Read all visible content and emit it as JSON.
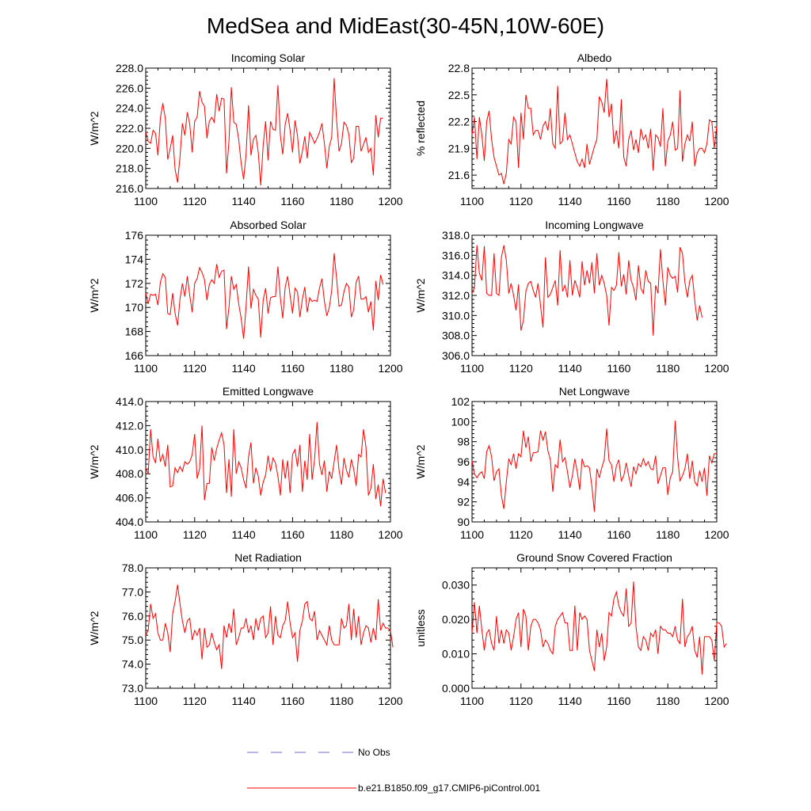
{
  "page_title": "MedSea and MidEast(30-45N,10W-60E)",
  "series_color": "#ff0000",
  "obs_color": "#6f6fc8",
  "legend": {
    "obs_label": "No Obs",
    "model_label": "b.e21.B1850.f09_g17.CMIP6-piControl.001"
  },
  "chart_data": [
    {
      "type": "line",
      "title": "Incoming Solar",
      "ylabel": "W/m^2",
      "xlim": [
        1100,
        1200
      ],
      "ylim": [
        216,
        228
      ],
      "xticks": [
        "1100",
        "1120",
        "1140",
        "1160",
        "1180",
        "1200"
      ],
      "yticks": [
        "216.0",
        "218.0",
        "220.0",
        "222.0",
        "224.0",
        "226.0",
        "228.0"
      ],
      "x_start": 1100,
      "values": [
        221.6,
        220.7,
        220.5,
        221.8,
        221.5,
        219.3,
        223.0,
        224.5,
        223.0,
        218.9,
        220.0,
        221.3,
        217.9,
        216.6,
        219.2,
        222.5,
        221.3,
        223.6,
        222.4,
        219.6,
        222.7,
        223.1,
        225.7,
        224.6,
        224.2,
        221.0,
        222.7,
        223.1,
        222.6,
        225.4,
        223.7,
        225.0,
        224.9,
        217.5,
        220.7,
        226.1,
        222.6,
        222.4,
        220.9,
        218.5,
        216.9,
        219.4,
        224.3,
        219.3,
        220.9,
        221.3,
        219.6,
        216.3,
        220.3,
        222.7,
        218.8,
        222.7,
        221.9,
        221.8,
        226.3,
        221.3,
        219.4,
        222.4,
        223.5,
        221.8,
        219.6,
        222.8,
        221.3,
        218.5,
        219.7,
        221.2,
        219.0,
        221.6,
        221.1,
        220.5,
        221.0,
        221.6,
        222.5,
        220.5,
        218.0,
        220.2,
        221.1,
        227.0,
        222.8,
        219.7,
        220.5,
        222.6,
        222.3,
        221.4,
        218.6,
        219.0,
        222.2,
        222.2,
        219.7,
        220.4,
        221.1,
        219.6,
        220.0,
        217.3,
        223.3,
        221.1,
        223.0,
        223.0
      ]
    },
    {
      "type": "line",
      "title": "Albedo",
      "ylabel": "% reflected",
      "xlim": [
        1100,
        1200
      ],
      "ylim": [
        21.45,
        22.8
      ],
      "xticks": [
        "1100",
        "1120",
        "1140",
        "1160",
        "1180",
        "1200"
      ],
      "yticks": [
        "21.6",
        "21.9",
        "22.2",
        "22.5",
        "22.8"
      ],
      "ytick_values": [
        21.6,
        21.9,
        22.2,
        22.5,
        22.8
      ],
      "x_start": 1100,
      "values": [
        22.05,
        22.25,
        21.78,
        22.25,
        22.05,
        21.76,
        22.2,
        22.32,
        22.0,
        21.8,
        21.7,
        21.6,
        21.62,
        21.5,
        21.62,
        22.0,
        21.95,
        22.25,
        22.2,
        21.68,
        22.3,
        22.0,
        22.5,
        22.35,
        22.35,
        22.05,
        22.1,
        22.1,
        22.0,
        22.15,
        22.2,
        22.1,
        22.35,
        21.95,
        21.9,
        22.6,
        21.95,
        21.98,
        22.3,
        22.0,
        22.05,
        21.95,
        21.85,
        21.75,
        21.7,
        21.78,
        21.68,
        21.95,
        21.72,
        21.82,
        21.92,
        22.0,
        22.48,
        22.42,
        22.3,
        22.68,
        22.25,
        22.4,
        21.95,
        22.1,
        21.9,
        22.45,
        21.8,
        21.7,
        22.0,
        22.1,
        21.88,
        22.0,
        21.85,
        22.12,
        22.0,
        22.05,
        21.9,
        22.12,
        21.65,
        22.05,
        22.02,
        21.92,
        22.35,
        21.7,
        21.98,
        22.05,
        22.2,
        21.88,
        21.9,
        22.55,
        21.75,
        21.95,
        22.05,
        21.98,
        22.2,
        21.7,
        21.85,
        21.9,
        21.9,
        21.85,
        21.95,
        22.22,
        22.2,
        21.9,
        22.15
      ]
    },
    {
      "type": "line",
      "title": "Absorbed Solar",
      "ylabel": "W/m^2",
      "xlim": [
        1100,
        1200
      ],
      "ylim": [
        166,
        176
      ],
      "xticks": [
        "1100",
        "1120",
        "1140",
        "1160",
        "1180",
        "1200"
      ],
      "yticks": [
        "166",
        "168",
        "170",
        "172",
        "174",
        "176"
      ],
      "x_start": 1100,
      "values": [
        171.2,
        170.3,
        171.1,
        171.0,
        171.1,
        170.2,
        172.1,
        172.8,
        172.5,
        169.5,
        169.4,
        171.2,
        169.5,
        168.5,
        170.7,
        172.0,
        170.9,
        172.6,
        171.0,
        169.6,
        172.0,
        172.4,
        173.3,
        172.9,
        172.3,
        170.6,
        171.9,
        172.3,
        172.0,
        173.6,
        172.5,
        173.0,
        173.1,
        168.2,
        170.0,
        172.6,
        171.5,
        171.9,
        170.3,
        169.1,
        167.4,
        170.1,
        173.4,
        169.9,
        171.5,
        171.0,
        170.7,
        167.5,
        170.6,
        171.6,
        169.5,
        170.8,
        170.9,
        170.9,
        173.4,
        170.8,
        169.1,
        171.7,
        172.6,
        171.0,
        169.5,
        171.6,
        171.3,
        169.2,
        170.7,
        171.7,
        169.6,
        170.8,
        170.5,
        170.6,
        170.5,
        171.6,
        172.4,
        170.5,
        169.3,
        170.0,
        171.4,
        174.5,
        172.4,
        170.1,
        170.2,
        171.3,
        172.0,
        171.7,
        169.2,
        169.8,
        172.1,
        172.6,
        170.7,
        170.7,
        170.9,
        169.6,
        170.5,
        168.1,
        172.2,
        170.6,
        172.7,
        171.9
      ]
    },
    {
      "type": "line",
      "title": "Incoming Longwave",
      "ylabel": "W/m^2",
      "xlim": [
        1100,
        1200
      ],
      "ylim": [
        306,
        318
      ],
      "xticks": [
        "1100",
        "1120",
        "1140",
        "1160",
        "1180",
        "1200"
      ],
      "yticks": [
        "306.0",
        "308.0",
        "310.0",
        "312.0",
        "314.0",
        "316.0",
        "318.0"
      ],
      "x_start": 1100,
      "values": [
        312.2,
        312.8,
        317.0,
        314.2,
        313.5,
        316.9,
        312.2,
        312.0,
        312.0,
        316.2,
        312.2,
        312.0,
        315.8,
        317.0,
        315.5,
        312.2,
        313.2,
        312.0,
        310.5,
        313.1,
        308.5,
        309.5,
        312.4,
        313.2,
        313.4,
        312.5,
        311.8,
        313.2,
        311.0,
        308.8,
        315.8,
        311.8,
        312.1,
        312.8,
        313.5,
        311.0,
        316.5,
        312.4,
        313.0,
        311.8,
        315.5,
        312.0,
        313.5,
        312.8,
        311.8,
        315.4,
        313.0,
        314.5,
        313.2,
        315.3,
        312.2,
        316.2,
        313.0,
        314.0,
        313.2,
        312.0,
        309.0,
        312.8,
        312.5,
        313.0,
        316.3,
        312.9,
        314.1,
        312.1,
        315.5,
        313.5,
        312.8,
        311.5,
        315.0,
        312.7,
        312.2,
        314.5,
        313.4,
        313.2,
        308.0,
        313.0,
        312.2,
        316.6,
        313.5,
        311.0,
        314.8,
        314.0,
        313.7,
        313.9,
        312.3,
        316.8,
        316.2,
        313.3,
        311.8,
        313.5,
        314.0,
        311.5,
        309.5,
        311.0,
        309.8
      ]
    },
    {
      "type": "line",
      "title": "Emitted Longwave",
      "ylabel": "W/m^2",
      "xlim": [
        1100,
        1200
      ],
      "ylim": [
        404,
        414
      ],
      "xticks": [
        "1100",
        "1120",
        "1140",
        "1160",
        "1180",
        "1200"
      ],
      "yticks": [
        "404.0",
        "406.0",
        "408.0",
        "410.0",
        "412.0",
        "414.0"
      ],
      "x_start": 1100,
      "values": [
        408.5,
        408.0,
        411.7,
        409.4,
        408.9,
        410.9,
        409.0,
        409.6,
        408.6,
        410.4,
        406.9,
        407.0,
        408.5,
        408.1,
        408.6,
        408.2,
        409.0,
        408.8,
        409.0,
        409.6,
        411.3,
        407.6,
        408.4,
        412.0,
        405.8,
        407.2,
        407.2,
        410.2,
        409.1,
        410.1,
        410.8,
        411.4,
        410.4,
        406.4,
        409.2,
        406.1,
        411.7,
        408.0,
        409.0,
        408.5,
        407.5,
        406.8,
        409.4,
        410.6,
        407.2,
        408.5,
        407.8,
        406.2,
        407.3,
        407.9,
        409.5,
        408.2,
        409.3,
        408.9,
        407.8,
        406.2,
        409.2,
        407.6,
        409.1,
        406.4,
        409.6,
        410.0,
        408.6,
        410.4,
        406.5,
        409.1,
        407.5,
        411.3,
        407.5,
        409.2,
        412.3,
        408.8,
        407.9,
        409.1,
        406.5,
        408.2,
        407.6,
        409.0,
        410.4,
        408.3,
        407.1,
        409.3,
        408.3,
        407.7,
        409.2,
        408.4,
        407.0,
        409.6,
        409.4,
        411.7,
        410.2,
        406.2,
        406.8,
        408.8,
        405.9,
        407.1,
        405.3,
        407.6,
        406.4
      ]
    },
    {
      "type": "line",
      "title": "Net Longwave",
      "ylabel": "W/m^2",
      "xlim": [
        1100,
        1200
      ],
      "ylim": [
        90,
        102
      ],
      "xticks": [
        "1100",
        "1120",
        "1140",
        "1160",
        "1180",
        "1200"
      ],
      "yticks": [
        "90",
        "92",
        "94",
        "96",
        "98",
        "100",
        "102"
      ],
      "x_start": 1100,
      "values": [
        96.1,
        94.8,
        94.4,
        94.8,
        95.0,
        94.3,
        97.0,
        97.6,
        96.5,
        94.1,
        95.0,
        95.3,
        92.6,
        91.3,
        94.0,
        96.3,
        95.7,
        96.8,
        95.3,
        96.8,
        96.5,
        99.1,
        97.4,
        98.5,
        96.0,
        96.9,
        96.9,
        97.0,
        99.1,
        98.1,
        99.0,
        97.1,
        96.2,
        93.0,
        95.7,
        95.4,
        98.2,
        96.0,
        96.4,
        95.0,
        93.4,
        94.6,
        96.3,
        95.0,
        93.2,
        96.3,
        95.5,
        95.6,
        95.4,
        93.5,
        91.0,
        95.3,
        94.4,
        95.4,
        96.2,
        99.3,
        96.1,
        95.7,
        94.0,
        95.6,
        96.2,
        94.1,
        94.6,
        95.9,
        94.6,
        93.5,
        95.5,
        94.8,
        95.8,
        95.5,
        96.3,
        95.6,
        96.0,
        95.3,
        95.2,
        96.6,
        93.8,
        94.6,
        95.4,
        95.4,
        92.7,
        94.4,
        95.0,
        100.1,
        96.4,
        94.1,
        94.6,
        95.3,
        96.8,
        94.3,
        96.1,
        94.0,
        93.6,
        95.1,
        94.0,
        95.4,
        92.6,
        96.6,
        95.9,
        96.8,
        96.8
      ]
    },
    {
      "type": "line",
      "title": "Net Radiation",
      "ylabel": "W/m^2",
      "xlim": [
        1100,
        1200
      ],
      "ylim": [
        73,
        78
      ],
      "xticks": [
        "1100",
        "1120",
        "1140",
        "1160",
        "1180",
        "1200"
      ],
      "yticks": [
        "73.0",
        "74.0",
        "75.0",
        "76.0",
        "77.0",
        "78.0"
      ],
      "x_start": 1100,
      "values": [
        75.2,
        75.4,
        76.5,
        75.9,
        76.1,
        75.3,
        75.0,
        75.0,
        75.7,
        75.3,
        74.5,
        76.1,
        76.6,
        77.3,
        76.5,
        75.8,
        75.3,
        75.8,
        75.9,
        75.0,
        75.4,
        75.2,
        75.5,
        74.2,
        75.5,
        74.7,
        74.8,
        75.3,
        74.9,
        74.6,
        74.8,
        73.8,
        75.6,
        75.1,
        75.7,
        75.3,
        76.3,
        74.8,
        75.1,
        75.5,
        75.5,
        75.9,
        75.3,
        75.6,
        75.0,
        75.9,
        75.4,
        75.9,
        76.0,
        75.1,
        75.3,
        76.4,
        74.8,
        76.0,
        75.2,
        75.1,
        75.6,
        75.8,
        76.6,
        75.7,
        75.1,
        75.3,
        74.1,
        75.4,
        75.8,
        76.5,
        76.6,
        75.9,
        75.8,
        76.2,
        75.0,
        75.4,
        75.2,
        75.0,
        74.8,
        75.6,
        75.0,
        74.8,
        74.8,
        74.8,
        75.9,
        75.5,
        75.6,
        76.5,
        75.0,
        76.3,
        75.1,
        76.0,
        74.8,
        75.3,
        75.6,
        75.5,
        74.9,
        75.5,
        75.0,
        76.7,
        75.4,
        75.7,
        75.5,
        75.5,
        75.4,
        74.7
      ]
    },
    {
      "type": "line",
      "title": "Ground Snow Covered Fraction",
      "ylabel": "unitless",
      "xlim": [
        1100,
        1200
      ],
      "ylim": [
        0,
        0.035
      ],
      "xticks": [
        "1100",
        "1120",
        "1140",
        "1160",
        "1180",
        "1200"
      ],
      "yticks": [
        "0.000",
        "0.010",
        "0.020",
        "0.030"
      ],
      "ytick_values": [
        0.0,
        0.01,
        0.02,
        0.03
      ],
      "x_start": 1100,
      "values": [
        0.016,
        0.025,
        0.016,
        0.024,
        0.017,
        0.011,
        0.016,
        0.017,
        0.013,
        0.011,
        0.021,
        0.013,
        0.017,
        0.013,
        0.017,
        0.016,
        0.011,
        0.015,
        0.02,
        0.022,
        0.012,
        0.023,
        0.021,
        0.011,
        0.018,
        0.02,
        0.02,
        0.019,
        0.017,
        0.012,
        0.014,
        0.013,
        0.011,
        0.01,
        0.018,
        0.02,
        0.021,
        0.022,
        0.019,
        0.019,
        0.011,
        0.011,
        0.024,
        0.011,
        0.022,
        0.02,
        0.021,
        0.02,
        0.011,
        0.008,
        0.005,
        0.017,
        0.012,
        0.016,
        0.008,
        0.012,
        0.022,
        0.021,
        0.026,
        0.028,
        0.024,
        0.022,
        0.021,
        0.029,
        0.018,
        0.019,
        0.031,
        0.018,
        0.012,
        0.011,
        0.015,
        0.014,
        0.011,
        0.016,
        0.015,
        0.017,
        0.01,
        0.018,
        0.017,
        0.017,
        0.016,
        0.016,
        0.015,
        0.018,
        0.014,
        0.013,
        0.026,
        0.012,
        0.015,
        0.016,
        0.018,
        0.011,
        0.009,
        0.015,
        0.004,
        0.015,
        0.015,
        0.015,
        0.014,
        0.008,
        0.019,
        0.019,
        0.018,
        0.012,
        0.013
      ]
    }
  ]
}
